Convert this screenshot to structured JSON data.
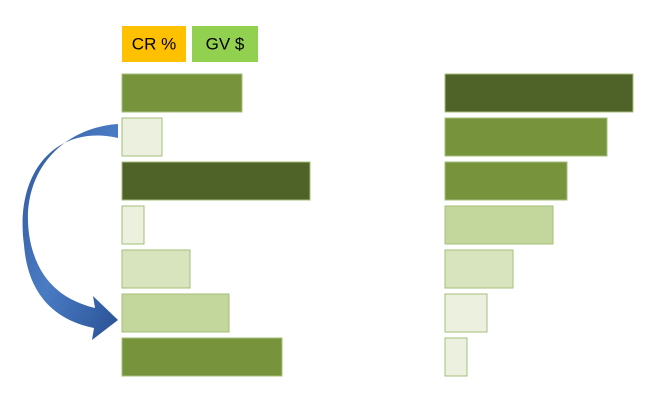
{
  "legend": [
    {
      "label": "CR %",
      "color": "#ffc000"
    },
    {
      "label": "GV $",
      "color": "#92d050"
    }
  ],
  "chart_data": [
    {
      "type": "bar",
      "values": [
        120,
        40,
        188,
        22,
        68,
        107,
        160
      ],
      "colors": [
        "#77933c",
        "#ebf1de",
        "#4f6228",
        "#ebf1de",
        "#d7e4bd",
        "#c3d69b",
        "#77933c"
      ]
    },
    {
      "type": "bar",
      "values": [
        188,
        162,
        122,
        108,
        68,
        42,
        22
      ],
      "colors": [
        "#4f6228",
        "#77933c",
        "#77933c",
        "#c3d69b",
        "#d7e4bd",
        "#ebf1de",
        "#ebf1de"
      ]
    }
  ]
}
